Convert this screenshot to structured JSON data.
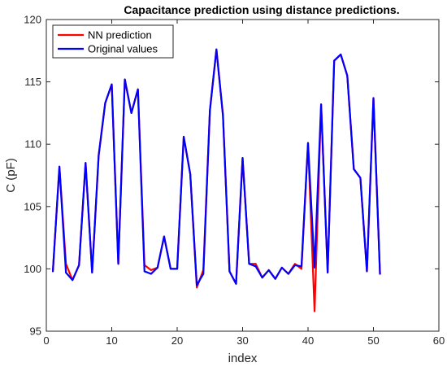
{
  "chart_data": {
    "type": "line",
    "title": "Capacitance prediction using distance predictions.",
    "xlabel": "index",
    "ylabel": "C (pF)",
    "xlim": [
      0,
      60
    ],
    "ylim": [
      95,
      120
    ],
    "xticks": [
      0,
      10,
      20,
      30,
      40,
      50,
      60
    ],
    "yticks": [
      95,
      100,
      105,
      110,
      115,
      120
    ],
    "grid": false,
    "legend_position": "top-left",
    "x": [
      1,
      2,
      3,
      4,
      5,
      6,
      7,
      8,
      9,
      10,
      11,
      12,
      13,
      14,
      15,
      16,
      17,
      18,
      19,
      20,
      21,
      22,
      23,
      24,
      25,
      26,
      27,
      28,
      29,
      30,
      31,
      32,
      33,
      34,
      35,
      36,
      37,
      38,
      39,
      40,
      41,
      42,
      43,
      44,
      45,
      46,
      47,
      48,
      49,
      50,
      51
    ],
    "series": [
      {
        "name": "NN prediction",
        "color": "#ff0000",
        "values": [
          99.8,
          108.2,
          100.4,
          99.1,
          100.3,
          108.5,
          99.7,
          109.1,
          113.3,
          114.8,
          100.4,
          115.2,
          112.5,
          114.4,
          100.3,
          99.9,
          100.1,
          102.6,
          100.0,
          100.0,
          110.6,
          107.6,
          98.5,
          99.9,
          112.7,
          117.6,
          112.3,
          99.8,
          98.8,
          108.9,
          100.4,
          100.4,
          99.3,
          99.9,
          99.2,
          100.1,
          99.6,
          100.4,
          100.0,
          110.1,
          96.6,
          113.2,
          99.7,
          116.7,
          117.2,
          115.5,
          108.0,
          107.3,
          99.8,
          113.7,
          99.6
        ]
      },
      {
        "name": "Original values",
        "color": "#0000ff",
        "values": [
          99.8,
          108.2,
          99.7,
          99.1,
          100.3,
          108.5,
          99.7,
          109.1,
          113.3,
          114.8,
          100.4,
          115.2,
          112.5,
          114.4,
          99.8,
          99.6,
          100.1,
          102.6,
          100.0,
          100.0,
          110.6,
          107.6,
          98.7,
          99.6,
          112.7,
          117.6,
          112.3,
          99.8,
          98.8,
          108.9,
          100.4,
          100.2,
          99.3,
          99.9,
          99.2,
          100.1,
          99.6,
          100.3,
          100.2,
          110.1,
          100.1,
          113.2,
          99.7,
          116.7,
          117.2,
          115.5,
          108.0,
          107.3,
          99.8,
          113.7,
          99.6
        ]
      }
    ]
  }
}
